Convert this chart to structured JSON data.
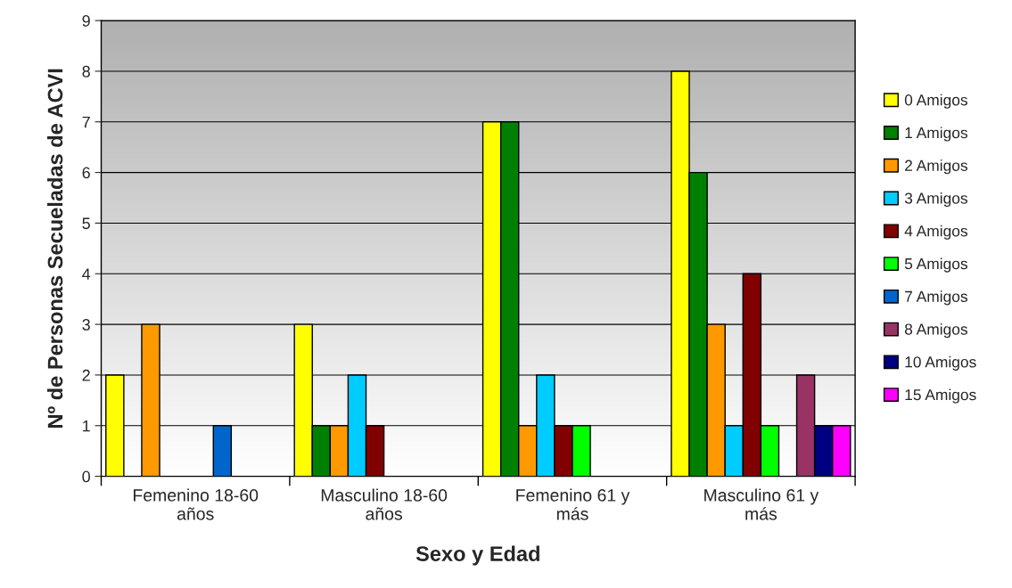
{
  "chart_data": {
    "type": "bar",
    "xlabel": "Sexo y Edad",
    "ylabel": "Nº de Personas Secueladas de ACVI",
    "categories": [
      "Femenino 18-60 años",
      "Masculino 18-60 años",
      "Femenino 61 y más",
      "Masculino 61 y más"
    ],
    "series": [
      {
        "name": "0 Amigos",
        "color": "#ffff00",
        "values": [
          2,
          3,
          7,
          8
        ]
      },
      {
        "name": "1 Amigos",
        "color": "#008000",
        "values": [
          null,
          1,
          7,
          6
        ]
      },
      {
        "name": "2 Amigos",
        "color": "#ff9900",
        "values": [
          3,
          1,
          1,
          3
        ]
      },
      {
        "name": "3 Amigos",
        "color": "#00ccff",
        "values": [
          null,
          2,
          2,
          1
        ]
      },
      {
        "name": "4 Amigos",
        "color": "#800000",
        "values": [
          null,
          1,
          1,
          4
        ]
      },
      {
        "name": "5 Amigos",
        "color": "#00ff00",
        "values": [
          null,
          null,
          1,
          1
        ]
      },
      {
        "name": "7 Amigos",
        "color": "#0066cc",
        "values": [
          1,
          null,
          null,
          null
        ]
      },
      {
        "name": "8 Amigos",
        "color": "#993366",
        "values": [
          null,
          null,
          null,
          2
        ]
      },
      {
        "name": "10 Amigos",
        "color": "#000080",
        "values": [
          null,
          null,
          null,
          1
        ]
      },
      {
        "name": "15 Amigos",
        "color": "#ff00ff",
        "values": [
          null,
          null,
          null,
          1
        ]
      }
    ],
    "ylim": [
      0,
      9
    ],
    "yticks": [
      0,
      1,
      2,
      3,
      4,
      5,
      6,
      7,
      8,
      9
    ],
    "grid": "y",
    "legend": "right"
  }
}
